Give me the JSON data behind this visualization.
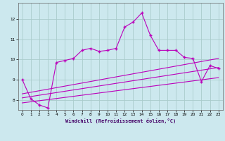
{
  "xlabel": "Windchill (Refroidissement éolien,°C)",
  "bg_color": "#cce8ee",
  "grid_color": "#aacccc",
  "line_color": "#bb00bb",
  "xlim": [
    -0.5,
    23.5
  ],
  "ylim": [
    7.5,
    12.8
  ],
  "xticks": [
    0,
    1,
    2,
    3,
    4,
    5,
    6,
    7,
    8,
    9,
    10,
    11,
    12,
    13,
    14,
    15,
    16,
    17,
    18,
    19,
    20,
    21,
    22,
    23
  ],
  "yticks": [
    8,
    9,
    10,
    11,
    12
  ],
  "main_x": [
    0,
    1,
    2,
    3,
    4,
    5,
    6,
    7,
    8,
    9,
    10,
    11,
    12,
    13,
    14,
    15,
    16,
    17,
    18,
    19,
    20,
    21,
    22,
    23
  ],
  "main_y": [
    9.0,
    8.05,
    7.75,
    7.6,
    9.85,
    9.95,
    10.05,
    10.45,
    10.55,
    10.4,
    10.45,
    10.55,
    11.6,
    11.85,
    12.3,
    11.2,
    10.45,
    10.45,
    10.45,
    10.1,
    10.05,
    8.9,
    9.7,
    9.55
  ],
  "line2_x": [
    0,
    23
  ],
  "line2_y": [
    8.3,
    10.05
  ],
  "line3_x": [
    0,
    23
  ],
  "line3_y": [
    8.1,
    9.6
  ],
  "line4_x": [
    0,
    23
  ],
  "line4_y": [
    7.85,
    9.1
  ]
}
